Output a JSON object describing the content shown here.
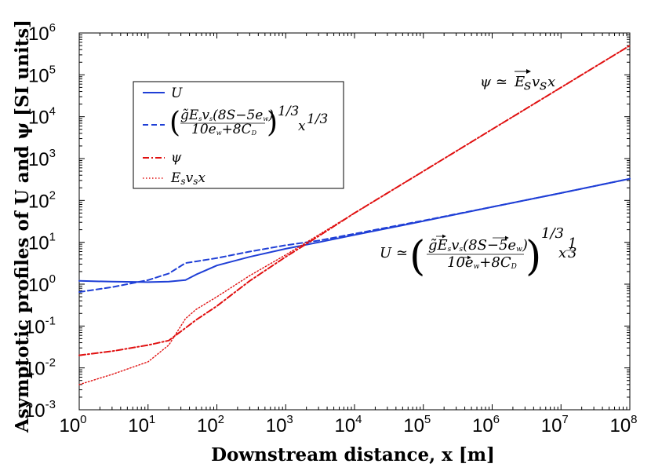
{
  "chart_data": {
    "type": "line",
    "title": "",
    "xlabel": "Downstream distance, x [m]",
    "ylabel": "Asymptotic profiles of U and ψ [SI units]",
    "xscale": "log",
    "yscale": "log",
    "xlim": [
      1,
      100000000
    ],
    "ylim": [
      0.001,
      1000000
    ],
    "x_tick_exponents": [
      0,
      1,
      2,
      3,
      4,
      5,
      6,
      7,
      8
    ],
    "y_tick_exponents": [
      -3,
      -2,
      -1,
      0,
      1,
      2,
      3,
      4,
      5,
      6
    ],
    "tick_base": "10",
    "grid": false,
    "legend_position": "top-left",
    "series": [
      {
        "name": "U",
        "legend_label": "U",
        "color": "#1f3fd6",
        "style": "solid",
        "x": [
          1,
          3,
          10,
          20,
          35,
          50,
          100,
          300,
          1000,
          3000,
          10000,
          100000,
          1000000,
          10000000,
          100000000
        ],
        "y": [
          1.2,
          1.15,
          1.12,
          1.15,
          1.25,
          1.7,
          2.8,
          4.5,
          7.0,
          10.0,
          15.0,
          32.0,
          70.0,
          150.0,
          330.0
        ]
      },
      {
        "name": "U asymptote",
        "legend_label": "(g̃E_s v_s(8S−5e_w) / (10e_w+8C_D))^(1/3) x^(1/3)",
        "color": "#1f3fd6",
        "style": "dashed",
        "x": [
          1,
          3,
          10,
          20,
          35,
          50,
          100,
          300,
          1000,
          3000,
          10000,
          100000,
          1000000,
          10000000,
          100000000
        ],
        "y": [
          0.65,
          0.85,
          1.25,
          1.8,
          3.2,
          3.5,
          4.2,
          6.0,
          8.5,
          11.0,
          16.0,
          33.0,
          70.0,
          150.0,
          330.0
        ]
      },
      {
        "name": "psi",
        "legend_label": "ψ",
        "color": "#e01010",
        "style": "dashdot",
        "x": [
          1,
          3,
          10,
          20,
          35,
          50,
          100,
          300,
          1000,
          3000,
          10000,
          100000,
          1000000,
          10000000,
          100000000
        ],
        "y": [
          0.02,
          0.025,
          0.035,
          0.045,
          0.09,
          0.14,
          0.3,
          1.2,
          4.5,
          14.0,
          50.0,
          500.0,
          5000.0,
          50000.0,
          500000.0
        ]
      },
      {
        "name": "Es vs x",
        "legend_label": "E_s v_s x",
        "color": "#e01010",
        "style": "dotted",
        "x": [
          1,
          3,
          10,
          20,
          35,
          50,
          100,
          300,
          1000,
          3000,
          10000,
          100000,
          1000000,
          10000000,
          100000000
        ],
        "y": [
          0.004,
          0.007,
          0.014,
          0.035,
          0.15,
          0.25,
          0.5,
          1.6,
          5.0,
          15.0,
          50.0,
          500.0,
          5000.0,
          50000.0,
          500000.0
        ]
      }
    ],
    "annotations": [
      {
        "text": "ψ ≃ E⃗_s v_s x",
        "position": "top-right"
      },
      {
        "text": "U ≃ (g̃E⃗_s v_s(8S−5e⃗_w) / (10e⃗_w+8C_D))^(1/3) x^(1/3)",
        "position": "middle-right"
      }
    ]
  }
}
